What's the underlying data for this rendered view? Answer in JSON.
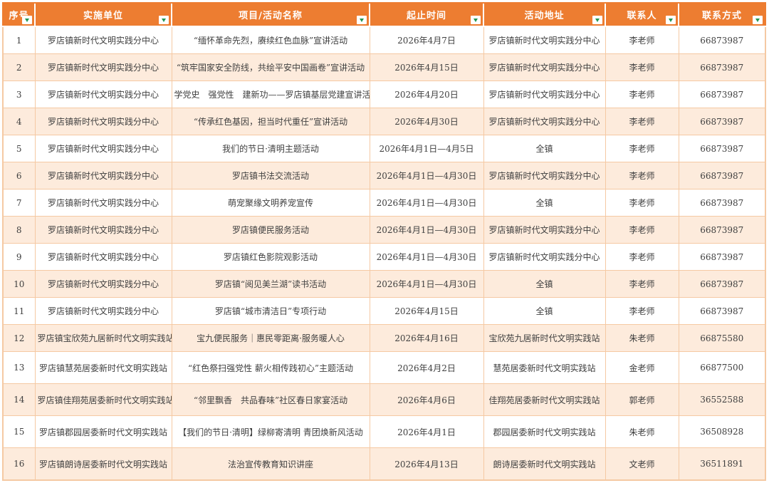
{
  "colors": {
    "header_bg": "#ED7D31",
    "header_text": "#FFFFFF",
    "row_bg": "#FFFFFF",
    "row_alt_bg": "#FDEBDC",
    "grid_border": "#F5C9A3",
    "filter_arrow_green": "#219653",
    "body_text": "#404040"
  },
  "icons": {
    "filter_dropdown": "▼"
  },
  "table": {
    "columns": [
      {
        "key": "index",
        "label": "序号"
      },
      {
        "key": "unit",
        "label": "实施单位"
      },
      {
        "key": "name",
        "label": "项目/活动名称"
      },
      {
        "key": "time",
        "label": "起止时间"
      },
      {
        "key": "address",
        "label": "活动地址"
      },
      {
        "key": "contact",
        "label": "联系人"
      },
      {
        "key": "phone",
        "label": "联系方式"
      }
    ],
    "rows": [
      [
        "1",
        "罗店镇新时代文明实践分中心",
        "“缅怀革命先烈，赓续红色血脉”宣讲活动",
        "2026年4月7日",
        "罗店镇新时代文明实践分中心",
        "李老师",
        "66873987"
      ],
      [
        "2",
        "罗店镇新时代文明实践分中心",
        "“筑牢国家安全防线，共绘平安中国画卷”宣讲活动",
        "2026年4月15日",
        "罗店镇新时代文明实践分中心",
        "李老师",
        "66873987"
      ],
      [
        "3",
        "罗店镇新时代文明实践分中心",
        "学党史　强党性　建新功——罗店镇基层党建宣讲活动",
        "2026年4月20日",
        "罗店镇新时代文明实践分中心",
        "李老师",
        "66873987"
      ],
      [
        "4",
        "罗店镇新时代文明实践分中心",
        "“传承红色基因，担当时代重任”宣讲活动",
        "2026年4月30日",
        "罗店镇新时代文明实践分中心",
        "李老师",
        "66873987"
      ],
      [
        "5",
        "罗店镇新时代文明实践分中心",
        "我们的节日·清明主题活动",
        "2026年4月1日—4月5日",
        "全镇",
        "李老师",
        "66873987"
      ],
      [
        "6",
        "罗店镇新时代文明实践分中心",
        "罗店镇书法交流活动",
        "2026年4月1日—4月30日",
        "罗店镇新时代文明实践分中心",
        "李老师",
        "66873987"
      ],
      [
        "7",
        "罗店镇新时代文明实践分中心",
        "萌宠聚缘文明养宠宣传",
        "2026年4月1日—4月30日",
        "全镇",
        "李老师",
        "66873987"
      ],
      [
        "8",
        "罗店镇新时代文明实践分中心",
        "罗店镇便民服务活动",
        "2026年4月1日—4月30日",
        "罗店镇新时代文明实践分中心",
        "李老师",
        "66873987"
      ],
      [
        "9",
        "罗店镇新时代文明实践分中心",
        "罗店镇红色影院观影活动",
        "2026年4月1日—4月30日",
        "罗店镇新时代文明实践分中心",
        "李老师",
        "66873987"
      ],
      [
        "10",
        "罗店镇新时代文明实践分中心",
        "罗店镇“阅见美兰湖”读书活动",
        "2026年4月1日—4月30日",
        "全镇",
        "李老师",
        "66873987"
      ],
      [
        "11",
        "罗店镇新时代文明实践分中心",
        "罗店镇“城市清洁日”专项行动",
        "2026年4月15日",
        "全镇",
        "李老师",
        "66873987"
      ],
      [
        "12",
        "罗店镇宝欣苑九居新时代文明实践站",
        "宝九便民服务｜惠民零距离·服务暖人心",
        "2026年4月16日",
        "宝欣苑九居新时代文明实践站",
        "朱老师",
        "66875580"
      ],
      [
        "13",
        "罗店镇慧苑居委新时代文明实践站",
        "“红色祭扫强党性 薪火相传践初心”主题活动",
        "2026年4月2日",
        "慧苑居委新时代文明实践站",
        "金老师",
        "66877500"
      ],
      [
        "14",
        "罗店镇佳翔苑居委新时代文明实践站",
        "“邻里飘香　共品春味”社区春日家宴活动",
        "2026年4月6日",
        "佳翔苑居委新时代文明实践站",
        "郭老师",
        "36552588"
      ],
      [
        "15",
        "罗店镇郡园居委新时代文明实践站",
        "【我们的节日·清明】绿柳寄清明 青团焕新风活动",
        "2026年4月1日",
        "郡园居委新时代文明实践站",
        "朱老师",
        "36508928"
      ],
      [
        "16",
        "罗店镇朗诗居委新时代文明实践站",
        "法治宣传教育知识讲座",
        "2026年4月13日",
        "朗诗居委新时代文明实践站",
        "文老师",
        "36511891"
      ]
    ]
  }
}
